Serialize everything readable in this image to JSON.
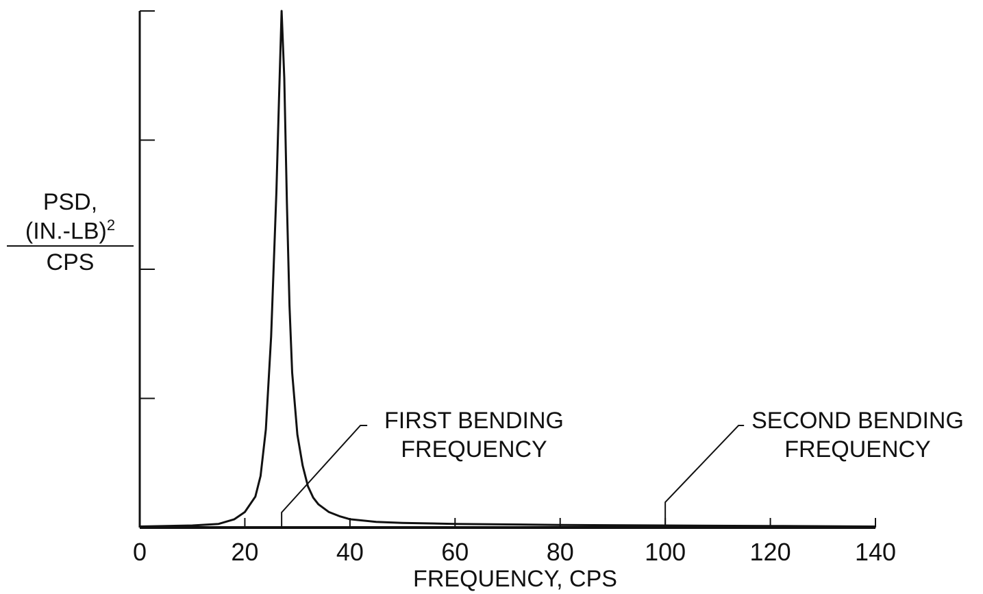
{
  "chart_data": {
    "type": "line",
    "xlabel": "FREQUENCY, CPS",
    "ylabel": {
      "line1": "PSD,",
      "numerator": "(IN.-LB)",
      "exponent": "2",
      "denominator": "CPS"
    },
    "xlim": [
      0,
      140
    ],
    "ylim": [
      0,
      1
    ],
    "x_ticks": [
      0,
      20,
      40,
      60,
      80,
      100,
      120,
      140
    ],
    "x_tick_labels": [
      "0",
      "20",
      "40",
      "60",
      "80",
      "100",
      "120",
      "140"
    ],
    "y_tick_count": 4,
    "grid": false,
    "series": [
      {
        "x": [
          0,
          5,
          10,
          15,
          18,
          20,
          22,
          23,
          24,
          25,
          26,
          26.5,
          27,
          27.5,
          28,
          28.5,
          29,
          30,
          31,
          32,
          33,
          34,
          36,
          38,
          40,
          45,
          50,
          60,
          80,
          100,
          120,
          140
        ],
        "y": [
          0.002,
          0.003,
          0.004,
          0.007,
          0.016,
          0.03,
          0.06,
          0.1,
          0.19,
          0.37,
          0.65,
          0.83,
          1.0,
          0.87,
          0.63,
          0.43,
          0.3,
          0.18,
          0.12,
          0.08,
          0.058,
          0.045,
          0.03,
          0.022,
          0.016,
          0.011,
          0.009,
          0.007,
          0.005,
          0.004,
          0.003,
          0.002
        ]
      }
    ],
    "annotations": [
      {
        "id": "first",
        "line1": "FIRST BENDING",
        "line2": "FREQUENCY",
        "x": 27
      },
      {
        "id": "second",
        "line1": "SECOND BENDING",
        "line2": "FREQUENCY",
        "x": 100
      }
    ]
  }
}
